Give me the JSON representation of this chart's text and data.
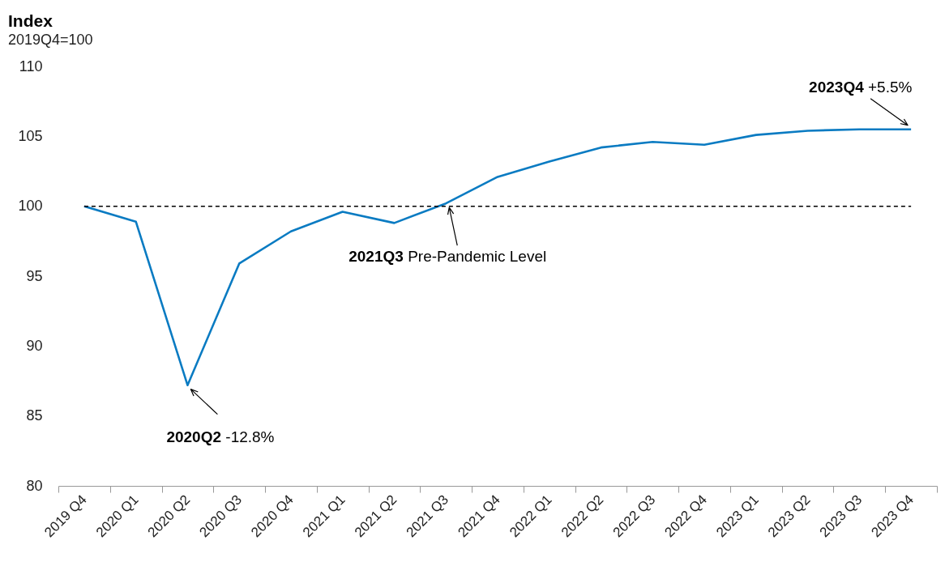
{
  "chart_data": {
    "type": "line",
    "title": "Index",
    "subtitle": "2019Q4=100",
    "categories": [
      "2019 Q4",
      "2020 Q1",
      "2020 Q2",
      "2020 Q3",
      "2020 Q4",
      "2021 Q1",
      "2021 Q2",
      "2021 Q3",
      "2021 Q4",
      "2022 Q1",
      "2022 Q2",
      "2022 Q3",
      "2022 Q4",
      "2023 Q1",
      "2023 Q2",
      "2023 Q3",
      "2023 Q4"
    ],
    "series": [
      {
        "color": "#0a7bc2",
        "values": [
          100,
          98.9,
          87.2,
          95.9,
          98.2,
          99.6,
          98.8,
          100.2,
          102.1,
          103.2,
          104.2,
          104.6,
          104.4,
          105.1,
          105.4,
          105.5,
          105.5
        ]
      }
    ],
    "ylim": [
      80,
      110
    ],
    "yticks": [
      80,
      85,
      90,
      95,
      100,
      105,
      110
    ],
    "ref_lines": [
      {
        "axis": "y",
        "value": 100,
        "color": "#000000",
        "line_style": "dashed"
      }
    ],
    "annotations": [
      {
        "text": "2020Q2 -12.8%",
        "x": "2020 Q2",
        "y": 87.2
      },
      {
        "text": "2021Q3 Pre-Pandemic Level",
        "x": "2021 Q3",
        "y": 100.2
      },
      {
        "text": "2023Q4 +5.5%",
        "x": "2023 Q4",
        "y": 105.5
      }
    ]
  }
}
